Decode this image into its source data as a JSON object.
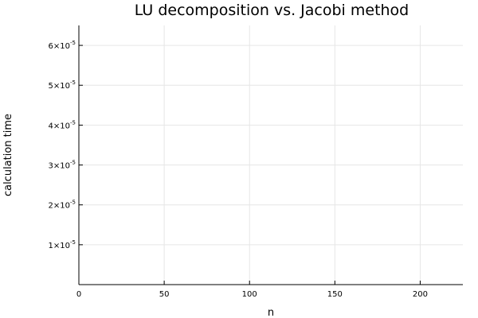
{
  "chart_data": {
    "type": "line",
    "title": "LU decomposition vs. Jacobi method",
    "xlabel": "n",
    "ylabel": "calculation time",
    "xlim": [
      0,
      225
    ],
    "ylim": [
      0,
      6.5e-05
    ],
    "xticks": [
      {
        "value": 0,
        "label": "0"
      },
      {
        "value": 50,
        "label": "50"
      },
      {
        "value": 100,
        "label": "100"
      },
      {
        "value": 150,
        "label": "150"
      },
      {
        "value": 200,
        "label": "200"
      }
    ],
    "yticks": [
      {
        "value": 1e-05,
        "mantissa": "1",
        "base": "×10",
        "exponent": "-5"
      },
      {
        "value": 2e-05,
        "mantissa": "2",
        "base": "×10",
        "exponent": "-5"
      },
      {
        "value": 3e-05,
        "mantissa": "3",
        "base": "×10",
        "exponent": "-5"
      },
      {
        "value": 4e-05,
        "mantissa": "4",
        "base": "×10",
        "exponent": "-5"
      },
      {
        "value": 5e-05,
        "mantissa": "5",
        "base": "×10",
        "exponent": "-5"
      },
      {
        "value": 6e-05,
        "mantissa": "6",
        "base": "×10",
        "exponent": "-5"
      }
    ],
    "grid": true,
    "series": []
  }
}
